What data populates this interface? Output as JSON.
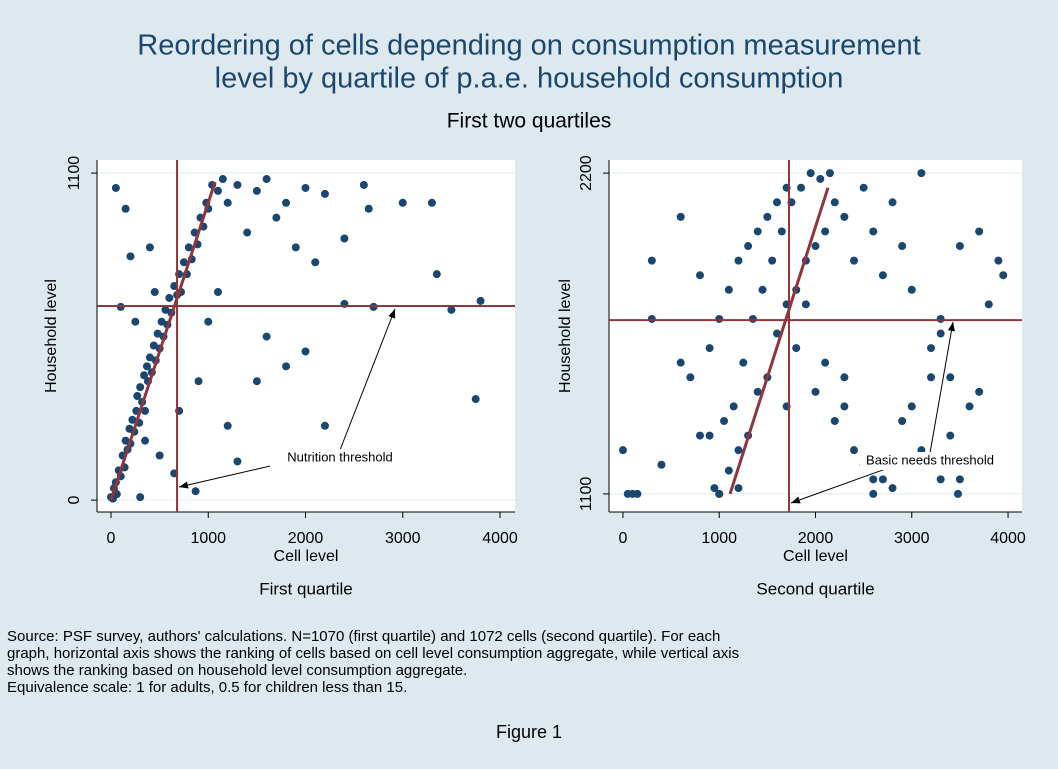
{
  "title": [
    "Reordering of cells depending on consumption measurement",
    "level by quartile of p.a.e. household consumption"
  ],
  "subtitle": "First two quartiles",
  "note": [
    "Source: PSF survey, authors' calculations. N=1070 (first quartile) and 1072 cells (second quartile). For each",
    "graph, horizontal axis shows the ranking of cells based on cell level consumption aggregate, while vertical axis",
    "shows the ranking based on household level consumption aggregate.",
    "Equivalence scale: 1 for adults, 0.5 for children less than 15."
  ],
  "caption": "Figure 1",
  "chart_data": [
    {
      "type": "scatter",
      "subtitle": "First quartile",
      "xlabel": "Cell level",
      "ylabel": "Household level",
      "annotation": "Nutrition threshold",
      "color": "#1a476f",
      "line_color": "#90353b",
      "xlim": [
        -144,
        4154
      ],
      "ylim": [
        -40,
        1144
      ],
      "xticks": [
        0,
        1000,
        2000,
        3000,
        4000
      ],
      "yticks": [
        0,
        1100
      ],
      "grid": true,
      "vline": 679,
      "hline": 653,
      "fit": {
        "x": [
          0,
          1070
        ],
        "y": [
          0,
          1070
        ]
      },
      "x": [
        0,
        20,
        30,
        50,
        60,
        80,
        100,
        120,
        140,
        150,
        170,
        190,
        200,
        220,
        240,
        260,
        270,
        290,
        300,
        320,
        340,
        350,
        370,
        380,
        400,
        420,
        440,
        460,
        480,
        500,
        520,
        540,
        560,
        580,
        600,
        620,
        650,
        680,
        700,
        720,
        750,
        780,
        800,
        830,
        860,
        890,
        920,
        950,
        980,
        1000,
        1040,
        1100,
        1150,
        1200,
        1300,
        1400,
        1500,
        1600,
        1700,
        1800,
        1900,
        2000,
        2100,
        2200,
        2400,
        2600,
        2650,
        3000,
        3300,
        3350,
        3500,
        3800,
        3750,
        2700,
        2400,
        2000,
        1500,
        1200,
        1300,
        870,
        650,
        300,
        100,
        50,
        150,
        200,
        400,
        450,
        250,
        350,
        500,
        700,
        900,
        1000,
        1100,
        2200,
        1600,
        1800
      ],
      "y": [
        10,
        5,
        40,
        60,
        20,
        100,
        80,
        150,
        110,
        200,
        170,
        240,
        190,
        270,
        230,
        300,
        350,
        260,
        380,
        330,
        420,
        300,
        450,
        400,
        480,
        430,
        520,
        470,
        560,
        510,
        600,
        550,
        640,
        590,
        680,
        630,
        720,
        690,
        760,
        700,
        800,
        760,
        850,
        810,
        900,
        860,
        950,
        920,
        1000,
        980,
        1060,
        1040,
        1080,
        1000,
        1060,
        900,
        1040,
        1080,
        950,
        1000,
        850,
        1050,
        800,
        1030,
        880,
        1060,
        980,
        1000,
        1000,
        760,
        640,
        670,
        340,
        650,
        660,
        500,
        400,
        250,
        130,
        30,
        90,
        10,
        650,
        1050,
        980,
        820,
        850,
        700,
        600,
        200,
        150,
        300,
        400,
        600,
        700,
        250,
        550,
        450
      ]
    },
    {
      "type": "scatter",
      "subtitle": "Second quartile",
      "xlabel": "Cell level",
      "ylabel": "Household level",
      "annotation": "Basic needs threshold",
      "color": "#1a476f",
      "line_color": "#90353b",
      "xlim": [
        -145,
        4145
      ],
      "ylim": [
        1038,
        2245
      ],
      "xticks": [
        0,
        1000,
        2000,
        3000,
        4000
      ],
      "yticks": [
        1100,
        2200
      ],
      "grid": true,
      "vline": 1725,
      "hline": 1696,
      "fit": {
        "x": [
          1112,
          2130
        ],
        "y": [
          1100,
          2150
        ]
      },
      "x": [
        0,
        50,
        100,
        150,
        300,
        400,
        600,
        700,
        800,
        900,
        950,
        1000,
        1050,
        1100,
        1150,
        1200,
        1250,
        1300,
        1350,
        1400,
        1450,
        1500,
        1550,
        1600,
        1650,
        1700,
        1750,
        1800,
        1850,
        1900,
        1950,
        2000,
        2050,
        2100,
        2150,
        2200,
        2300,
        2400,
        2500,
        2600,
        2700,
        2800,
        2900,
        3000,
        3100,
        3200,
        3300,
        3400,
        3500,
        3600,
        3700,
        3800,
        3900,
        3950,
        300,
        600,
        800,
        1000,
        1200,
        1400,
        1600,
        1800,
        2000,
        2200,
        2400,
        2600,
        2800,
        3000,
        3200,
        3400,
        3600,
        900,
        1100,
        1300,
        1500,
        1700,
        1900,
        2100,
        2300,
        2500,
        2700,
        2900,
        3100,
        3300,
        3500,
        3700,
        1000,
        1200,
        1700,
        2300,
        2600,
        3300,
        3480
      ],
      "y": [
        1250,
        1100,
        1100,
        1100,
        1700,
        1200,
        2050,
        1500,
        1850,
        1300,
        1120,
        1100,
        1350,
        1180,
        1400,
        1250,
        1550,
        1300,
        1700,
        1450,
        1800,
        1500,
        1900,
        1650,
        2000,
        1750,
        2100,
        1800,
        2150,
        1900,
        2200,
        1950,
        2180,
        2000,
        2200,
        2100,
        2050,
        1900,
        2150,
        2000,
        1850,
        2100,
        1950,
        1800,
        2200,
        1600,
        1700,
        1500,
        1950,
        1400,
        2000,
        1750,
        1900,
        1850,
        1900,
        1550,
        1300,
        1700,
        1900,
        2000,
        2100,
        1600,
        1450,
        1350,
        1250,
        1150,
        1120,
        1400,
        1500,
        1300,
        1200,
        1600,
        1800,
        1950,
        2050,
        2150,
        1750,
        1550,
        1400,
        1200,
        1150,
        1350,
        1250,
        1650,
        1150,
        1450,
        1100,
        1120,
        1400,
        1500,
        1100,
        1150,
        1100
      ]
    }
  ]
}
